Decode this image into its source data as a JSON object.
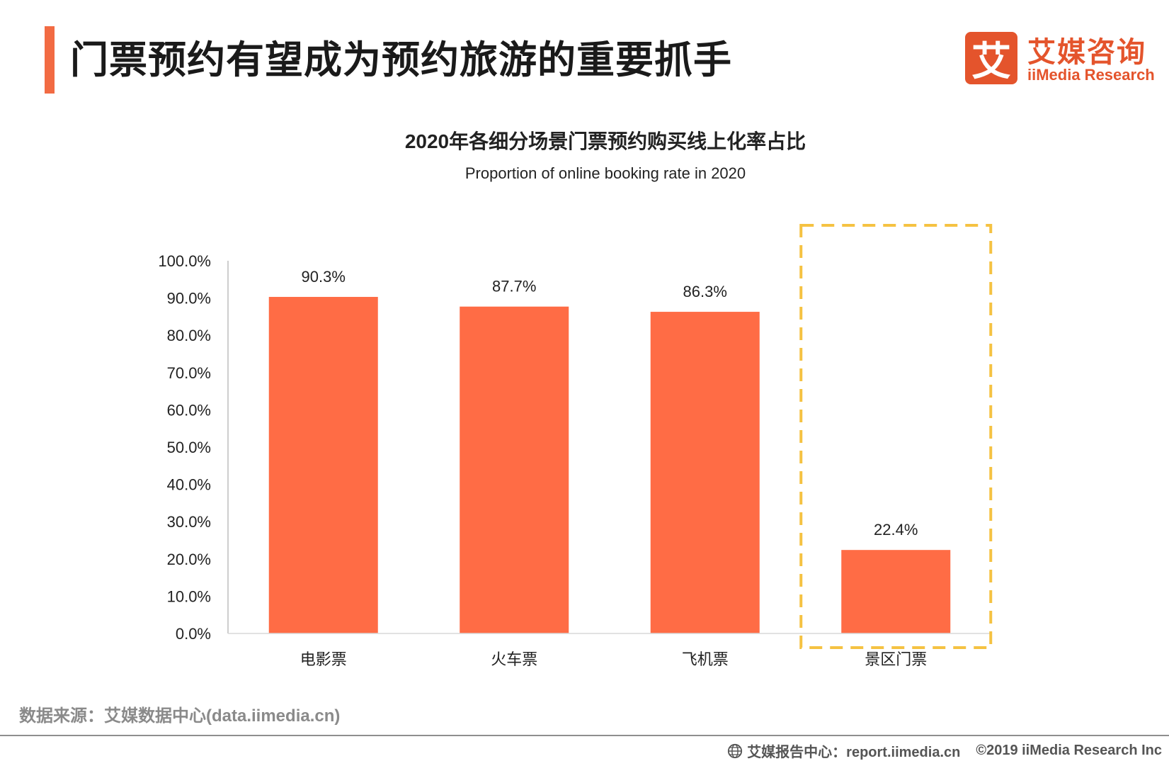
{
  "header": {
    "title": "门票预约有望成为预约旅游的重要抓手"
  },
  "logo": {
    "mark": "艾",
    "name_cn": "艾媒咨询",
    "name_en": "iiMedia Research"
  },
  "chart_data": {
    "type": "bar",
    "title": "2020年各细分场景门票预约购买线上化率占比",
    "subtitle": "Proportion of online booking rate in 2020",
    "categories": [
      "电影票",
      "火车票",
      "飞机票",
      "景区门票"
    ],
    "values": [
      90.3,
      87.7,
      86.3,
      22.4
    ],
    "value_labels": [
      "90.3%",
      "87.7%",
      "86.3%",
      "22.4%"
    ],
    "ylim": [
      0,
      100
    ],
    "yticks": [
      "0.0%",
      "10.0%",
      "20.0%",
      "30.0%",
      "40.0%",
      "50.0%",
      "60.0%",
      "70.0%",
      "80.0%",
      "90.0%",
      "100.0%"
    ],
    "xlabel": "",
    "ylabel": "",
    "grid": false,
    "highlight_category": "景区门票",
    "bar_color": "#ff6c45",
    "highlight_color": "#f5c242"
  },
  "footer": {
    "source": "数据来源：艾媒数据中心(data.iimedia.cn)",
    "report_center": "艾媒报告中心：report.iimedia.cn",
    "copyright": "©2019  iiMedia Research  Inc"
  }
}
